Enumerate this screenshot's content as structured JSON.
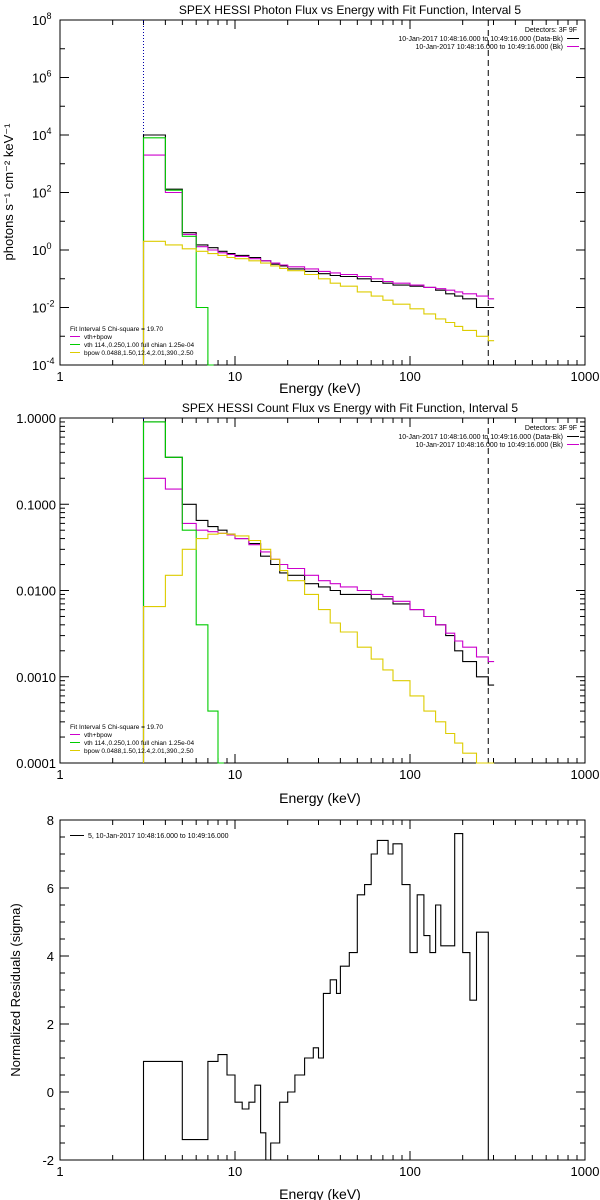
{
  "colors": {
    "data": "#000000",
    "total": "#cc00cc",
    "vth": "#00cc00",
    "bpow": "#ddcc00",
    "marker_low": "#ff8800",
    "dotted": "#0000aa",
    "dashed": "#000000"
  },
  "chart_data": [
    {
      "type": "line",
      "title": "SPEX HESSI Photon Flux vs Energy with Fit Function, Interval 5",
      "xlabel": "Energy (keV)",
      "ylabel": "photons s⁻¹ cm⁻² keV⁻¹",
      "xscale": "log",
      "yscale": "log",
      "xlim": [
        1,
        1000
      ],
      "ylim": [
        0.0001,
        100000000
      ],
      "xticks": [
        "1",
        "10",
        "100",
        "1000"
      ],
      "yticks": [
        {
          "base": "10",
          "exp": "-4"
        },
        {
          "base": "10",
          "exp": "-2"
        },
        {
          "base": "10",
          "exp": "0"
        },
        {
          "base": "10",
          "exp": "2"
        },
        {
          "base": "10",
          "exp": "4"
        },
        {
          "base": "10",
          "exp": "6"
        },
        {
          "base": "10",
          "exp": "8"
        }
      ],
      "legend_upper_right": {
        "placement": "top-right",
        "header": "Detectors: 3F 9F",
        "entries": [
          {
            "text": "10-Jan-2017 10:48:16.000 to 10:49:16.000 (Data-Bk)",
            "color": "#000000"
          },
          {
            "text": "10-Jan-2017 10:48:16.000 to 10:49:16.000 (Bk)",
            "color": "#cc00cc"
          }
        ]
      },
      "legend_lower_left": {
        "placement": "bottom-left",
        "header": "Fit Interval 5   Chi-square = 19.70",
        "entries": [
          {
            "text": "vth+bpow",
            "color": "#cc00cc"
          },
          {
            "text": "vth 114.,0.250,1.00  full chian 1.25e-04",
            "color": "#00cc00"
          },
          {
            "text": "bpow 0.0488,1.50,12.4,2.01,390.,2.50",
            "color": "#ddcc00"
          }
        ]
      },
      "energy_range_markers": {
        "low_keV": 3,
        "high_keV": 280
      },
      "series": [
        {
          "color_key": "data",
          "x": [
            3,
            4,
            5,
            6,
            7,
            8,
            9,
            10,
            12,
            14,
            16,
            18,
            20,
            25,
            30,
            35,
            40,
            50,
            60,
            70,
            80,
            100,
            120,
            140,
            160,
            180,
            200,
            240,
            280
          ],
          "y": [
            10000,
            130,
            4,
            1.5,
            1.2,
            0.9,
            0.75,
            0.65,
            0.55,
            0.42,
            0.32,
            0.28,
            0.22,
            0.18,
            0.15,
            0.13,
            0.12,
            0.1,
            0.08,
            0.07,
            0.06,
            0.055,
            0.05,
            0.04,
            0.03,
            0.025,
            0.02,
            0.01,
            0.01
          ]
        },
        {
          "color_key": "total",
          "x": [
            3,
            4,
            5,
            6,
            7,
            8,
            9,
            10,
            12,
            14,
            16,
            18,
            20,
            25,
            30,
            35,
            40,
            50,
            60,
            70,
            80,
            100,
            120,
            140,
            160,
            180,
            200,
            240,
            280
          ],
          "y": [
            2000,
            100,
            3.5,
            1.3,
            1.0,
            0.8,
            0.7,
            0.6,
            0.5,
            0.42,
            0.35,
            0.3,
            0.26,
            0.22,
            0.18,
            0.16,
            0.14,
            0.12,
            0.1,
            0.08,
            0.07,
            0.06,
            0.05,
            0.045,
            0.04,
            0.035,
            0.03,
            0.025,
            0.02
          ]
        },
        {
          "color_key": "vth",
          "x": [
            3,
            4,
            5,
            6,
            7
          ],
          "y": [
            8000,
            120,
            3,
            0.01,
            0.0001
          ]
        },
        {
          "color_key": "bpow",
          "x": [
            3,
            4,
            5,
            6,
            7,
            8,
            9,
            10,
            12,
            14,
            16,
            18,
            20,
            25,
            30,
            35,
            40,
            50,
            60,
            70,
            80,
            100,
            120,
            140,
            160,
            180,
            200,
            240,
            280
          ],
          "y": [
            2,
            1.5,
            1.1,
            0.9,
            0.75,
            0.65,
            0.55,
            0.5,
            0.42,
            0.35,
            0.28,
            0.23,
            0.19,
            0.14,
            0.1,
            0.07,
            0.055,
            0.035,
            0.025,
            0.018,
            0.013,
            0.009,
            0.006,
            0.004,
            0.003,
            0.0022,
            0.0016,
            0.001,
            0.0007
          ]
        }
      ]
    },
    {
      "type": "line",
      "title": "SPEX HESSI Count Flux vs Energy with Fit Function, Interval 5",
      "xlabel": "Energy (keV)",
      "ylabel": "",
      "xscale": "log",
      "yscale": "log",
      "xlim": [
        1,
        1000
      ],
      "ylim": [
        0.0001,
        1.0
      ],
      "xticks": [
        "1",
        "10",
        "100",
        "1000"
      ],
      "yticks": [
        "0.0001",
        "0.0010",
        "0.0100",
        "0.1000",
        "1.0000"
      ],
      "legend_upper_right": {
        "placement": "top-right",
        "header": "Detectors: 3F 9F",
        "entries": [
          {
            "text": "10-Jan-2017 10:48:16.000 to 10:49:16.000 (Data-Bk)",
            "color": "#000000"
          },
          {
            "text": "10-Jan-2017 10:48:16.000 to 10:49:16.000 (Bk)",
            "color": "#cc00cc"
          }
        ]
      },
      "legend_lower_left": {
        "placement": "bottom-left",
        "header": "Fit Interval 5   Chi-square = 19.70",
        "entries": [
          {
            "text": "vth+bpow",
            "color": "#cc00cc"
          },
          {
            "text": "vth 114.,0.250,1.00  full chian 1.25e-04",
            "color": "#00cc00"
          },
          {
            "text": "bpow 0.0488,1.50,12.4,2.01,390.,2.50",
            "color": "#ddcc00"
          }
        ]
      },
      "energy_range_markers": {
        "low_keV": 3,
        "high_keV": 280
      },
      "series": [
        {
          "color_key": "data",
          "x": [
            3,
            4,
            5,
            6,
            7,
            8,
            9,
            10,
            12,
            14,
            16,
            18,
            20,
            25,
            30,
            35,
            40,
            50,
            60,
            70,
            80,
            100,
            120,
            140,
            160,
            180,
            200,
            240,
            280
          ],
          "y": [
            0.9,
            0.35,
            0.1,
            0.065,
            0.055,
            0.05,
            0.045,
            0.04,
            0.035,
            0.025,
            0.02,
            0.016,
            0.015,
            0.012,
            0.011,
            0.01,
            0.009,
            0.009,
            0.008,
            0.008,
            0.007,
            0.006,
            0.005,
            0.004,
            0.003,
            0.002,
            0.0015,
            0.001,
            0.0008
          ]
        },
        {
          "color_key": "total",
          "x": [
            3,
            4,
            5,
            6,
            7,
            8,
            9,
            10,
            12,
            14,
            16,
            18,
            20,
            25,
            30,
            35,
            40,
            50,
            60,
            70,
            80,
            100,
            120,
            140,
            160,
            180,
            200,
            240,
            280
          ],
          "y": [
            0.2,
            0.15,
            0.06,
            0.05,
            0.048,
            0.046,
            0.044,
            0.04,
            0.034,
            0.028,
            0.023,
            0.02,
            0.018,
            0.015,
            0.013,
            0.012,
            0.011,
            0.01,
            0.009,
            0.0085,
            0.0075,
            0.006,
            0.005,
            0.004,
            0.0032,
            0.0026,
            0.0022,
            0.0017,
            0.0015
          ]
        },
        {
          "color_key": "vth",
          "x": [
            3,
            4,
            5,
            6,
            7,
            8
          ],
          "y": [
            0.9,
            0.35,
            0.05,
            0.004,
            0.0004,
            0.0001
          ]
        },
        {
          "color_key": "bpow",
          "x": [
            3,
            4,
            5,
            6,
            7,
            8,
            9,
            10,
            12,
            14,
            16,
            18,
            20,
            25,
            30,
            35,
            40,
            50,
            60,
            70,
            80,
            100,
            120,
            140,
            160,
            180,
            200,
            240,
            280
          ],
          "y": [
            0.0065,
            0.015,
            0.03,
            0.04,
            0.045,
            0.046,
            0.045,
            0.043,
            0.038,
            0.03,
            0.023,
            0.017,
            0.013,
            0.009,
            0.006,
            0.0042,
            0.0033,
            0.0022,
            0.0016,
            0.0012,
            0.0009,
            0.0006,
            0.0004,
            0.0003,
            0.00022,
            0.00017,
            0.00013,
            0.0001,
            0.0001
          ]
        }
      ]
    },
    {
      "type": "line",
      "title": "",
      "xlabel": "Energy (keV)",
      "ylabel": "Normalized Residuals (sigma)",
      "xscale": "log",
      "yscale": "linear",
      "xlim": [
        1,
        1000
      ],
      "ylim": [
        -2,
        8
      ],
      "xticks": [
        "1",
        "10",
        "100",
        "1000"
      ],
      "yticks": [
        "-2",
        "0",
        "2",
        "4",
        "6",
        "8"
      ],
      "legend": {
        "placement": "top-left",
        "entries": [
          {
            "text": "5, 10-Jan-2017 10:48:16.000 to 10:49:16.000",
            "color": "#000000"
          }
        ]
      },
      "series": [
        {
          "color_key": "data",
          "x": [
            3,
            4,
            5,
            6,
            7,
            8,
            9,
            10,
            11,
            12,
            13,
            14,
            15,
            16,
            18,
            20,
            22,
            25,
            28,
            30,
            32,
            35,
            38,
            40,
            45,
            50,
            55,
            60,
            65,
            70,
            75,
            80,
            90,
            100,
            110,
            120,
            130,
            140,
            150,
            160,
            180,
            200,
            220,
            240,
            260,
            280
          ],
          "y": [
            0.9,
            0.9,
            -1.4,
            -1.4,
            0.9,
            1.1,
            0.5,
            -0.3,
            -0.5,
            -0.3,
            0.2,
            -1.2,
            -2.0,
            -1.5,
            -0.3,
            0.0,
            0.5,
            1.0,
            1.3,
            1.0,
            2.9,
            3.3,
            2.9,
            3.7,
            4.1,
            5.8,
            6.1,
            7.0,
            7.4,
            7.4,
            7.0,
            7.3,
            6.1,
            4.1,
            5.8,
            4.6,
            4.1,
            5.5,
            4.3,
            4.3,
            7.6,
            4.1,
            2.7,
            4.7,
            4.7,
            -2.0
          ]
        }
      ]
    }
  ]
}
